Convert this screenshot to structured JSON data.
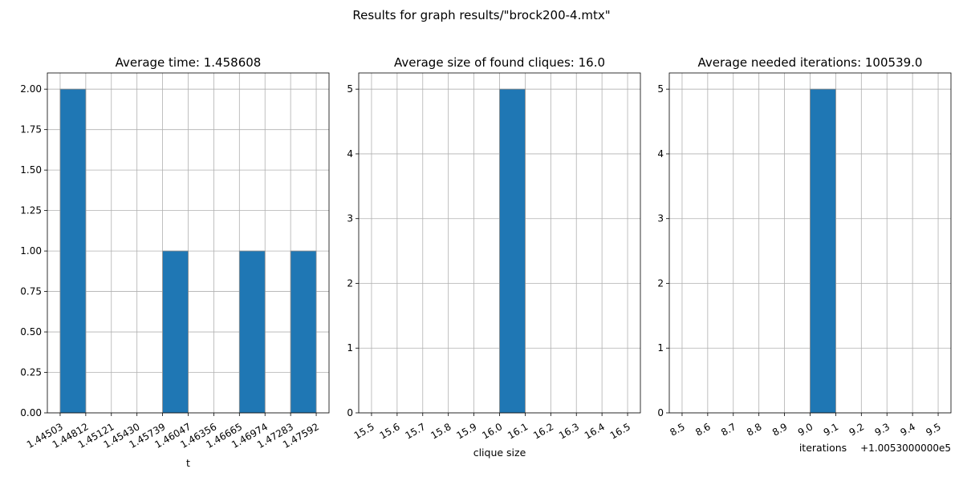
{
  "suptitle": "Results for graph results/\"brock200-4.mtx\"",
  "colors": {
    "bar": "#1f77b4",
    "bar_edge": "#8c8c8c",
    "grid": "#b0b0b0",
    "axis": "#000000"
  },
  "chart_data": [
    {
      "type": "bar",
      "title": "Average time: 1.458608",
      "xlabel": "t",
      "ylabel": "",
      "x_ticks": [
        "1.44503",
        "1.44812",
        "1.45121",
        "1.45430",
        "1.45739",
        "1.46047",
        "1.46356",
        "1.46665",
        "1.46974",
        "1.47283",
        "1.47592"
      ],
      "y_ticks": [
        "0.00",
        "0.25",
        "0.50",
        "0.75",
        "1.00",
        "1.25",
        "1.50",
        "1.75",
        "2.00"
      ],
      "ylim": [
        0,
        2.1
      ],
      "bins": [
        "1.44503-1.44812",
        "1.44812-1.45121",
        "1.45121-1.45430",
        "1.45430-1.45739",
        "1.45739-1.46047",
        "1.46047-1.46356",
        "1.46356-1.46665",
        "1.46665-1.46974",
        "1.46974-1.47283",
        "1.47283-1.47592"
      ],
      "values": [
        2,
        0,
        0,
        0,
        1,
        0,
        0,
        1,
        0,
        1
      ],
      "grid": true,
      "offset_text": ""
    },
    {
      "type": "bar",
      "title": "Average size of found cliques: 16.0",
      "xlabel": "clique size",
      "ylabel": "",
      "x_ticks": [
        "15.5",
        "15.6",
        "15.7",
        "15.8",
        "15.9",
        "16.0",
        "16.1",
        "16.2",
        "16.3",
        "16.4",
        "16.5"
      ],
      "y_ticks": [
        "0",
        "1",
        "2",
        "3",
        "4",
        "5"
      ],
      "ylim": [
        0,
        5.25
      ],
      "bins": [
        "15.5-15.6",
        "15.6-15.7",
        "15.7-15.8",
        "15.8-15.9",
        "15.9-16.0",
        "16.0-16.1",
        "16.1-16.2",
        "16.2-16.3",
        "16.3-16.4",
        "16.4-16.5"
      ],
      "values": [
        0,
        0,
        0,
        0,
        0,
        5,
        0,
        0,
        0,
        0
      ],
      "grid": true,
      "offset_text": ""
    },
    {
      "type": "bar",
      "title": "Average needed iterations: 100539.0",
      "xlabel": "iterations",
      "ylabel": "",
      "x_ticks": [
        "8.5",
        "8.6",
        "8.7",
        "8.8",
        "8.9",
        "9.0",
        "9.1",
        "9.2",
        "9.3",
        "9.4",
        "9.5"
      ],
      "y_ticks": [
        "0",
        "1",
        "2",
        "3",
        "4",
        "5"
      ],
      "ylim": [
        0,
        5.25
      ],
      "bins": [
        "8.5-8.6",
        "8.6-8.7",
        "8.7-8.8",
        "8.8-8.9",
        "8.9-9.0",
        "9.0-9.1",
        "9.1-9.2",
        "9.2-9.3",
        "9.3-9.4",
        "9.4-9.5"
      ],
      "values": [
        0,
        0,
        0,
        0,
        0,
        5,
        0,
        0,
        0,
        0
      ],
      "grid": true,
      "offset_text": "+1.0053000000e5"
    }
  ]
}
